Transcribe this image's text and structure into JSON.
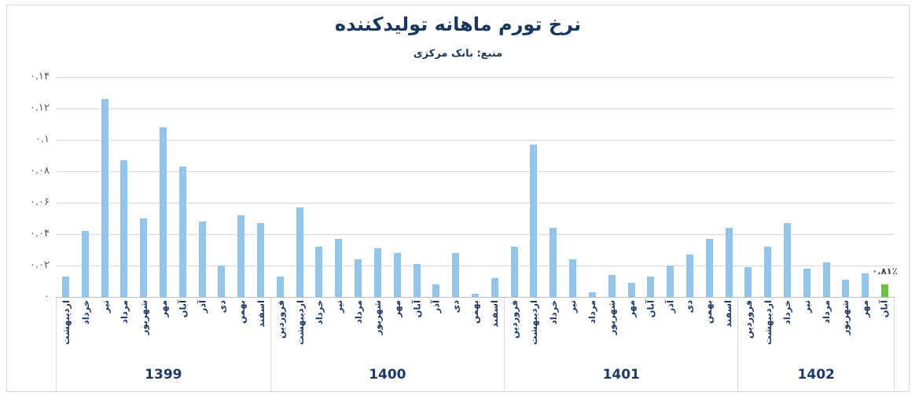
{
  "page": {
    "background": "#FFFFFF",
    "frame_border": "#D9D9D9"
  },
  "chart_data": {
    "type": "bar",
    "title": "نرخ تورم ماهانه تولیدکننده",
    "subtitle": "منبع: بانک مرکزی",
    "ylabel": "",
    "xlabel": "",
    "ylim": [
      0,
      0.14
    ],
    "grid": true,
    "legend": false,
    "yticks": [
      {
        "value": 0.14,
        "label": "۰.۱۴"
      },
      {
        "value": 0.12,
        "label": "۰.۱۲"
      },
      {
        "value": 0.1,
        "label": "۰.۱"
      },
      {
        "value": 0.08,
        "label": "۰.۰۸"
      },
      {
        "value": 0.06,
        "label": "۰.۰۶"
      },
      {
        "value": 0.04,
        "label": "۰.۰۴"
      },
      {
        "value": 0.02,
        "label": "۰.۰۲"
      },
      {
        "value": 0.0,
        "label": "۰"
      }
    ],
    "groups": [
      {
        "year": "1399",
        "months": [
          "اردیبهشت",
          "خرداد",
          "تیر",
          "مرداد",
          "شهریور",
          "مهر",
          "آبان",
          "آذر",
          "دی",
          "بهمن",
          "اسفند"
        ],
        "values": [
          0.013,
          0.042,
          0.126,
          0.087,
          0.05,
          0.108,
          0.083,
          0.048,
          0.02,
          0.052,
          0.047
        ]
      },
      {
        "year": "1400",
        "months": [
          "فروردین",
          "اردیبهشت",
          "خرداد",
          "تیر",
          "مرداد",
          "شهریور",
          "مهر",
          "آبان",
          "آذر",
          "دی",
          "بهمن",
          "اسفند"
        ],
        "values": [
          0.013,
          0.057,
          0.032,
          0.037,
          0.024,
          0.031,
          0.028,
          0.021,
          0.008,
          0.028,
          0.002,
          0.012
        ]
      },
      {
        "year": "1401",
        "months": [
          "فروردین",
          "اردیبهشت",
          "خرداد",
          "تیر",
          "مرداد",
          "شهریور",
          "مهر",
          "آبان",
          "آذر",
          "دی",
          "بهمن",
          "اسفند"
        ],
        "values": [
          0.032,
          0.097,
          0.044,
          0.024,
          0.003,
          0.014,
          0.009,
          0.013,
          0.02,
          0.027,
          0.037,
          0.044
        ]
      },
      {
        "year": "1402",
        "months": [
          "فروردین",
          "اردیبهشت",
          "خرداد",
          "تیر",
          "مرداد",
          "شهریور",
          "مهر",
          "آبان"
        ],
        "values": [
          0.019,
          0.032,
          0.047,
          0.018,
          0.022,
          0.011,
          0.015,
          0.0081
        ]
      }
    ],
    "highlight": {
      "group_index": 3,
      "month_index": 7,
      "label": "۰.۸۱٪"
    },
    "colors": {
      "bar": "#92C5E9",
      "highlight_bar": "#6FBE45",
      "title_text": "#17375E",
      "axis_text": "#1F3864",
      "ytick_text": "#595959",
      "gridline": "#D9D9D9",
      "axis_line": "#BFBFBF",
      "annotation_text": "#3F3F3F"
    }
  }
}
